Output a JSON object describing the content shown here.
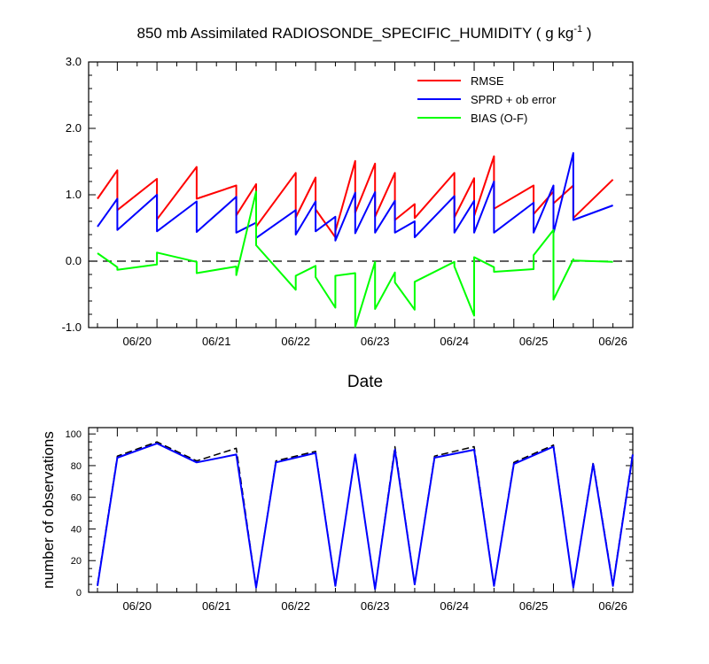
{
  "title_main": "850 mb Assimilated RADIOSONDE_SPECIFIC_HUMIDITY ( g kg",
  "title_sup": "-1",
  "title_end": " )",
  "colors": {
    "rmse": "#ff0000",
    "sprd": "#0000ff",
    "bias": "#00ff00",
    "obs_used": "#0000ff",
    "obs_possible": "#000000"
  },
  "chart_data": [
    {
      "type": "line",
      "xlabel": "Date",
      "ylabel": "",
      "x_ticklabels": [
        "06/20",
        "06/21",
        "06/22",
        "06/23",
        "06/24",
        "06/25",
        "06/26"
      ],
      "y_ticklabels": [
        "-1.0",
        "0.0",
        "1.0",
        "2.0",
        "3.0"
      ],
      "ylim": [
        -1.0,
        3.0
      ],
      "xlim": [
        0.0,
        6.75
      ],
      "zero_line": "dashed",
      "legend_position": "top-right",
      "series": [
        {
          "name": "RMSE",
          "color_key": "rmse",
          "x": [
            0.0,
            0.25,
            0.25,
            0.75,
            0.75,
            1.25,
            1.25,
            1.75,
            1.75,
            2.0,
            2.0,
            2.5,
            2.5,
            2.75,
            2.75,
            3.0,
            3.0,
            3.25,
            3.25,
            3.5,
            3.5,
            3.75,
            3.75,
            4.0,
            4.0,
            4.5,
            4.5,
            4.75,
            4.75,
            5.0,
            5.0,
            5.5,
            5.5,
            5.75,
            5.75,
            6.0,
            6.0,
            6.5
          ],
          "y": [
            0.94,
            1.37,
            0.77,
            1.24,
            0.63,
            1.42,
            0.94,
            1.14,
            0.69,
            1.16,
            0.52,
            1.33,
            0.66,
            1.26,
            0.78,
            0.36,
            0.45,
            1.51,
            0.73,
            1.47,
            0.67,
            1.33,
            0.62,
            0.86,
            0.65,
            1.33,
            0.66,
            1.25,
            0.68,
            1.58,
            0.79,
            1.14,
            0.71,
            1.05,
            0.87,
            1.14,
            0.65,
            1.23
          ]
        },
        {
          "name": "SPRD + ob error",
          "color_key": "sprd",
          "x": [
            0.0,
            0.25,
            0.25,
            0.75,
            0.75,
            1.25,
            1.25,
            1.75,
            1.75,
            2.0,
            2.0,
            2.5,
            2.5,
            2.75,
            2.75,
            3.0,
            3.0,
            3.25,
            3.25,
            3.5,
            3.5,
            3.75,
            3.75,
            4.0,
            4.0,
            4.5,
            4.5,
            4.75,
            4.75,
            5.0,
            5.0,
            5.5,
            5.5,
            5.75,
            5.75,
            6.0,
            6.0,
            6.5
          ],
          "y": [
            0.52,
            0.94,
            0.47,
            1.0,
            0.45,
            0.9,
            0.44,
            0.97,
            0.43,
            0.58,
            0.35,
            0.77,
            0.4,
            0.9,
            0.45,
            0.67,
            0.31,
            1.03,
            0.42,
            1.04,
            0.43,
            0.91,
            0.43,
            0.6,
            0.36,
            0.98,
            0.43,
            0.91,
            0.43,
            1.2,
            0.43,
            0.88,
            0.43,
            1.14,
            0.42,
            1.63,
            0.62,
            0.84
          ]
        },
        {
          "name": "BIAS (O-F)",
          "color_key": "bias",
          "x": [
            0.0,
            0.25,
            0.25,
            0.75,
            0.75,
            1.25,
            1.25,
            1.75,
            1.75,
            2.0,
            2.0,
            2.5,
            2.5,
            2.75,
            2.75,
            3.0,
            3.0,
            3.25,
            3.25,
            3.5,
            3.5,
            3.75,
            3.75,
            4.0,
            4.0,
            4.5,
            4.5,
            4.75,
            4.75,
            5.0,
            5.0,
            5.5,
            5.5,
            5.75,
            5.75,
            6.0,
            6.0,
            6.5
          ],
          "y": [
            0.12,
            -0.09,
            -0.13,
            -0.05,
            0.13,
            -0.01,
            -0.18,
            -0.08,
            -0.21,
            1.05,
            0.24,
            -0.43,
            -0.22,
            -0.07,
            -0.24,
            -0.7,
            -0.22,
            -0.18,
            -0.99,
            -0.01,
            -0.72,
            -0.17,
            -0.32,
            -0.73,
            -0.31,
            -0.01,
            -0.08,
            -0.82,
            0.06,
            -0.09,
            -0.16,
            -0.12,
            0.09,
            0.47,
            -0.58,
            0.03,
            0.01,
            -0.01
          ]
        }
      ]
    },
    {
      "type": "line",
      "xlabel": "",
      "ylabel": "number of observations",
      "x_ticklabels": [
        "06/20",
        "06/21",
        "06/22",
        "06/23",
        "06/24",
        "06/25",
        "06/26"
      ],
      "y_ticklabels": [
        "0",
        "20",
        "40",
        "60",
        "80",
        "100"
      ],
      "ylim": [
        0,
        104
      ],
      "xlim": [
        0.0,
        6.75
      ],
      "series": [
        {
          "name": "",
          "color_key": "obs_possible",
          "style": "dashed",
          "x": [
            0.0,
            0.25,
            0.75,
            1.25,
            1.75,
            2.0,
            2.25,
            2.75,
            3.0,
            3.25,
            3.5,
            3.75,
            4.0,
            4.25,
            4.75,
            5.0,
            5.25,
            5.75,
            6.0,
            6.25,
            6.5,
            6.75
          ],
          "y": [
            5,
            86,
            95,
            83,
            91,
            3,
            83,
            89,
            4,
            87,
            2,
            92,
            5,
            86,
            92,
            4,
            82,
            93,
            3,
            82,
            5,
            88
          ]
        },
        {
          "name": "",
          "color_key": "obs_used",
          "style": "solid",
          "x": [
            0.0,
            0.25,
            0.75,
            1.25,
            1.75,
            2.0,
            2.25,
            2.75,
            3.0,
            3.25,
            3.5,
            3.75,
            4.0,
            4.25,
            4.75,
            5.0,
            5.25,
            5.75,
            6.0,
            6.25,
            6.5,
            6.75
          ],
          "y": [
            4,
            85,
            94,
            82,
            87,
            3,
            82,
            88,
            4,
            87,
            2,
            90,
            5,
            85,
            90,
            4,
            81,
            92,
            3,
            81,
            4,
            87
          ]
        }
      ]
    }
  ]
}
